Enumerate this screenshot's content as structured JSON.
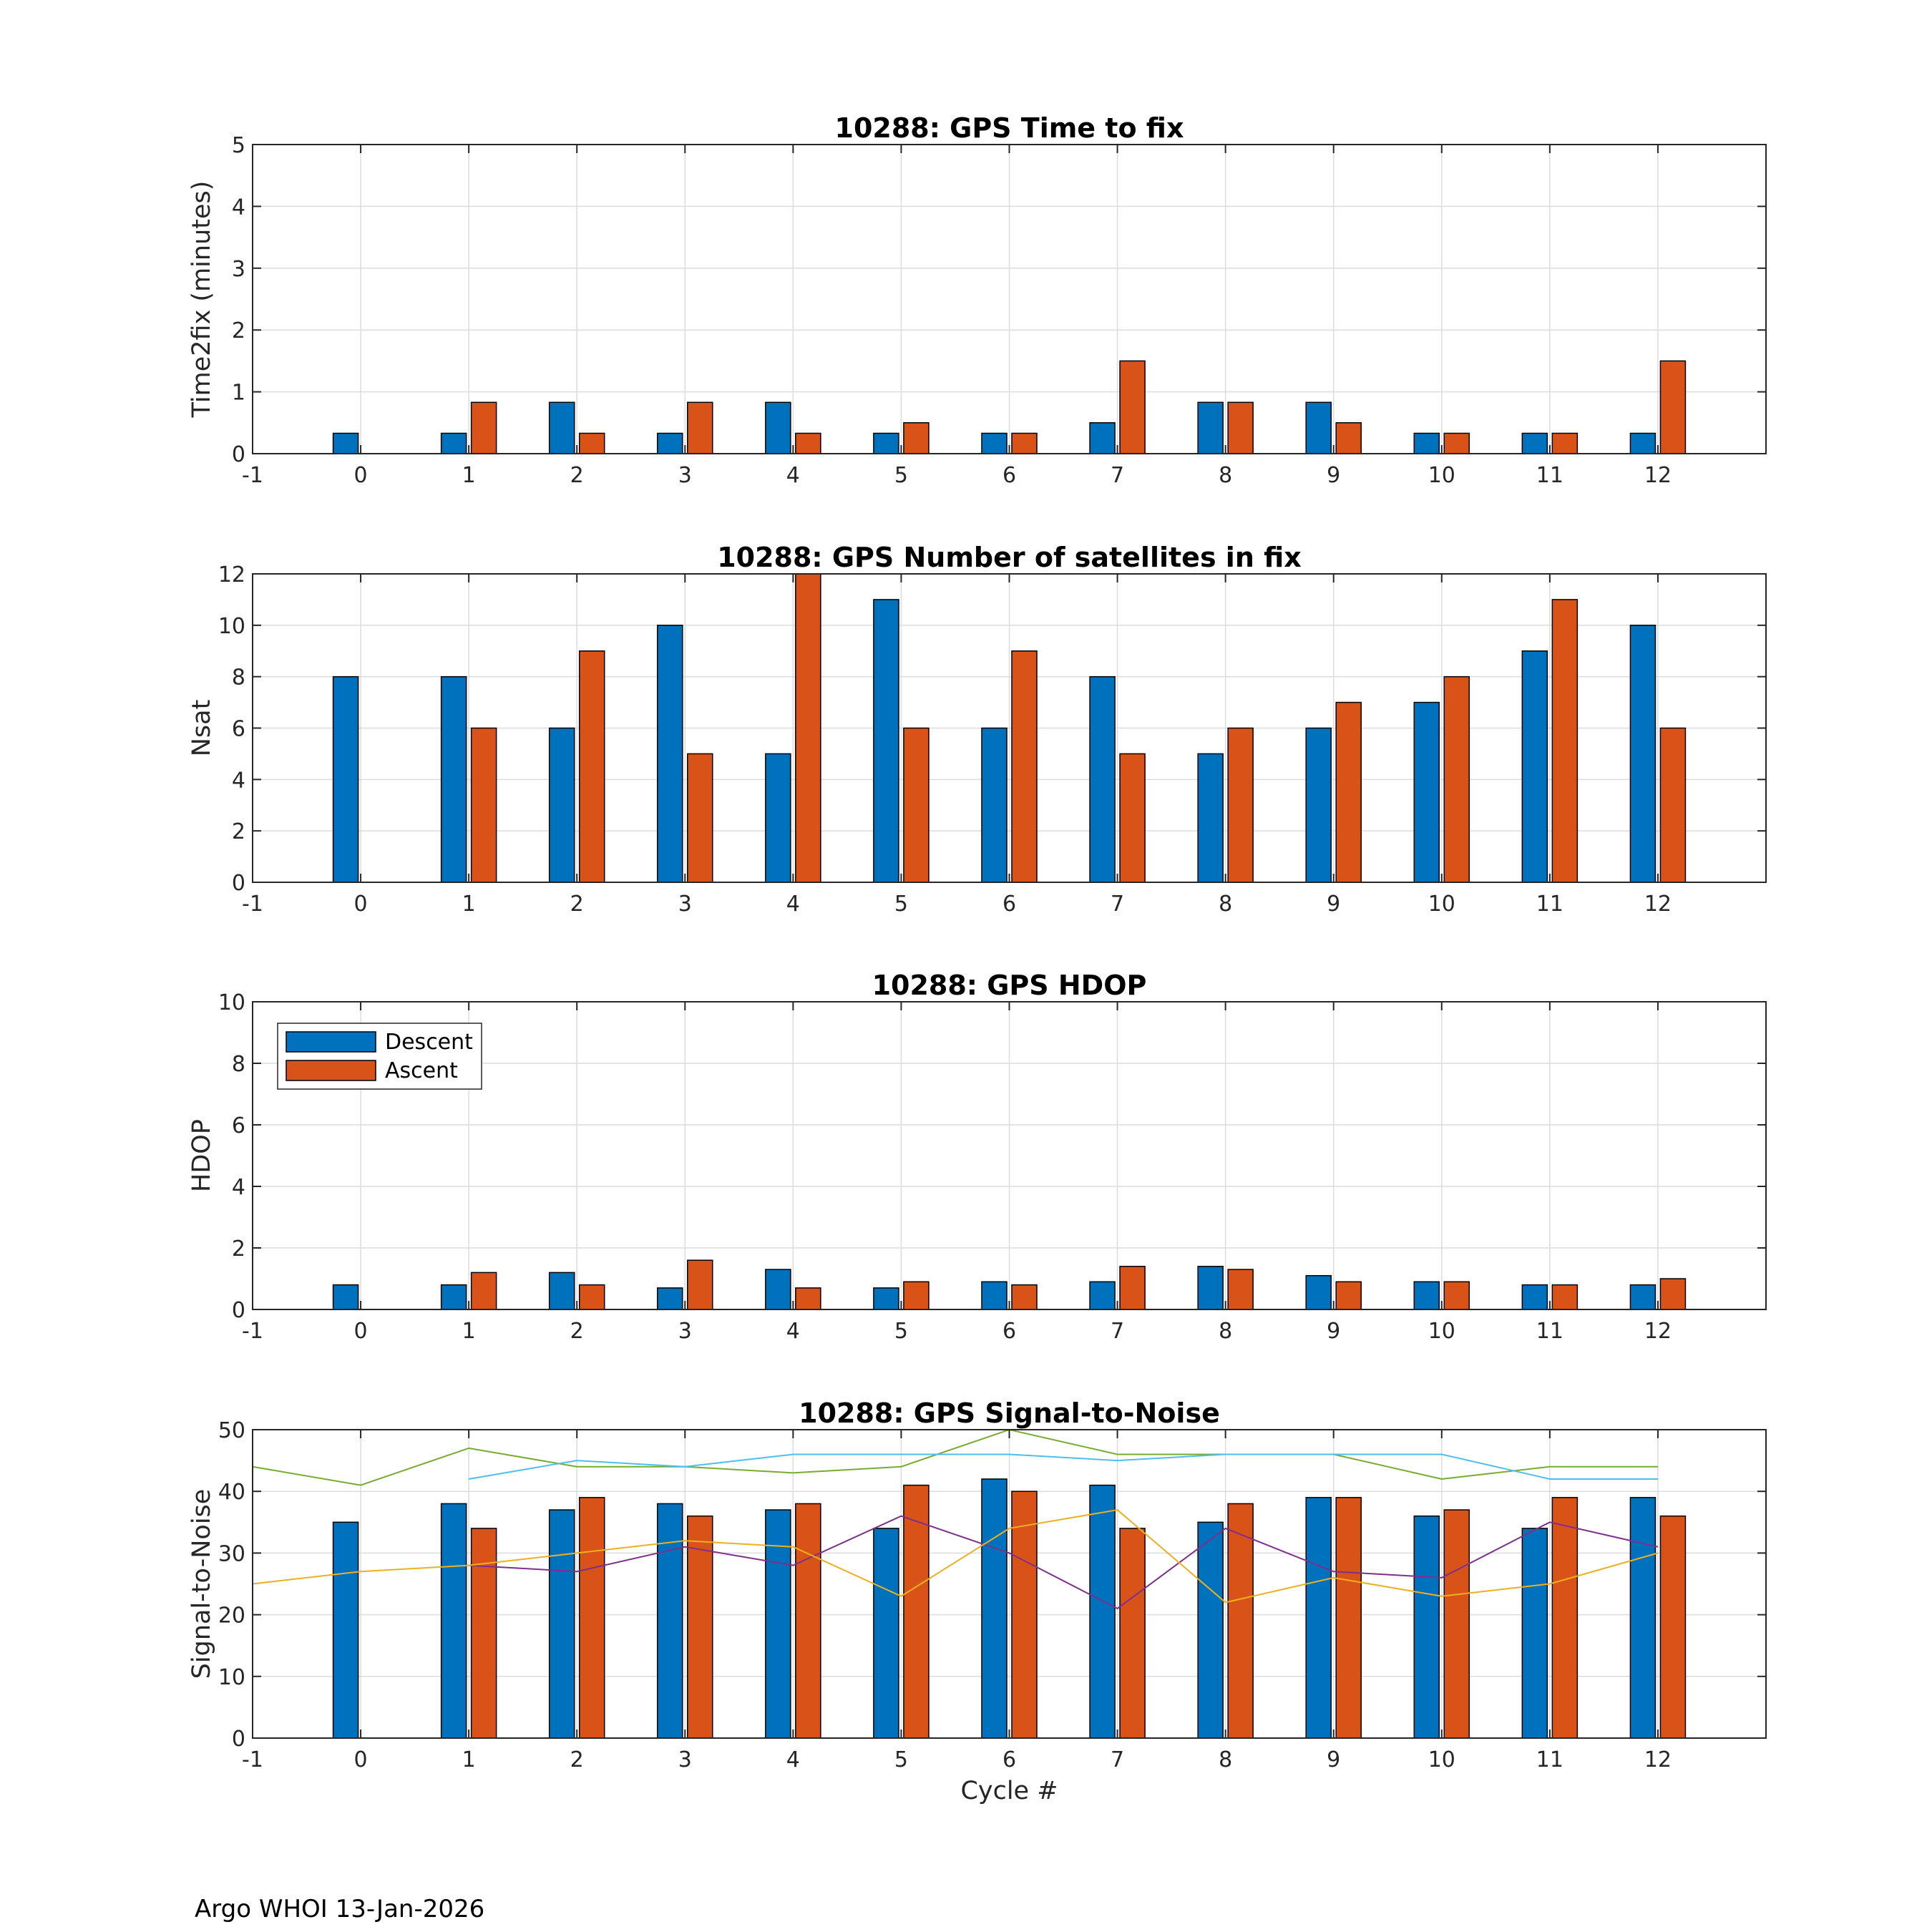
{
  "footer": "Argo WHOI 13-Jan-2026",
  "colors": {
    "descent": "#0072BD",
    "ascent": "#D95319",
    "snr_lines": [
      "#77AC30",
      "#4DBEEE",
      "#7E2F8E",
      "#EDB120"
    ],
    "grid": "#dcdcdc",
    "axis": "#262626"
  },
  "chart_data": [
    {
      "type": "bar",
      "title": "10288: GPS Time to fix",
      "xlabel": "",
      "ylabel": "Time2fix (minutes)",
      "xlim": [
        -1,
        13
      ],
      "ylim": [
        0,
        5
      ],
      "xticks": [
        -1,
        0,
        1,
        2,
        3,
        4,
        5,
        6,
        7,
        8,
        9,
        10,
        11,
        12
      ],
      "yticks": [
        0,
        1,
        2,
        3,
        4,
        5
      ],
      "grid": true,
      "categories": [
        0,
        1,
        2,
        3,
        4,
        5,
        6,
        7,
        8,
        9,
        10,
        11,
        12
      ],
      "series": [
        {
          "name": "Descent",
          "values": [
            0.33,
            0.33,
            0.83,
            0.33,
            0.83,
            0.33,
            0.33,
            0.5,
            0.83,
            0.83,
            0.33,
            0.33,
            0.33
          ]
        },
        {
          "name": "Ascent",
          "values": [
            null,
            0.83,
            0.33,
            0.83,
            0.33,
            0.5,
            0.33,
            1.5,
            0.83,
            0.5,
            0.33,
            0.33,
            1.5
          ]
        }
      ]
    },
    {
      "type": "bar",
      "title": "10288: GPS Number of satellites in fix",
      "xlabel": "",
      "ylabel": "Nsat",
      "xlim": [
        -1,
        13
      ],
      "ylim": [
        0,
        12
      ],
      "xticks": [
        -1,
        0,
        1,
        2,
        3,
        4,
        5,
        6,
        7,
        8,
        9,
        10,
        11,
        12
      ],
      "yticks": [
        0,
        2,
        4,
        6,
        8,
        10,
        12
      ],
      "grid": true,
      "categories": [
        0,
        1,
        2,
        3,
        4,
        5,
        6,
        7,
        8,
        9,
        10,
        11,
        12
      ],
      "series": [
        {
          "name": "Descent",
          "values": [
            8,
            8,
            6,
            10,
            5,
            11,
            6,
            8,
            5,
            6,
            7,
            9,
            10
          ]
        },
        {
          "name": "Ascent",
          "values": [
            null,
            6,
            9,
            5,
            12,
            6,
            9,
            5,
            6,
            7,
            8,
            11,
            6
          ]
        }
      ]
    },
    {
      "type": "bar",
      "title": "10288: GPS HDOP",
      "xlabel": "",
      "ylabel": "HDOP",
      "xlim": [
        -1,
        13
      ],
      "ylim": [
        0,
        10
      ],
      "xticks": [
        -1,
        0,
        1,
        2,
        3,
        4,
        5,
        6,
        7,
        8,
        9,
        10,
        11,
        12
      ],
      "yticks": [
        0,
        2,
        4,
        6,
        8,
        10
      ],
      "grid": true,
      "legend": {
        "location": "top-left",
        "entries": [
          "Descent",
          "Ascent"
        ]
      },
      "categories": [
        0,
        1,
        2,
        3,
        4,
        5,
        6,
        7,
        8,
        9,
        10,
        11,
        12
      ],
      "series": [
        {
          "name": "Descent",
          "values": [
            0.8,
            0.8,
            1.2,
            0.7,
            1.3,
            0.7,
            0.9,
            0.9,
            1.4,
            1.1,
            0.9,
            0.8,
            0.8
          ]
        },
        {
          "name": "Ascent",
          "values": [
            null,
            1.2,
            0.8,
            1.6,
            0.7,
            0.9,
            0.8,
            1.4,
            1.3,
            0.9,
            0.9,
            0.8,
            1.0
          ]
        }
      ]
    },
    {
      "type": "bar",
      "title": "10288: GPS Signal-to-Noise",
      "xlabel": "Cycle #",
      "ylabel": "Signal-to-Noise",
      "xlim": [
        -1,
        13
      ],
      "ylim": [
        0,
        50
      ],
      "xticks": [
        -1,
        0,
        1,
        2,
        3,
        4,
        5,
        6,
        7,
        8,
        9,
        10,
        11,
        12
      ],
      "yticks": [
        0,
        10,
        20,
        30,
        40,
        50
      ],
      "grid": true,
      "categories": [
        0,
        1,
        2,
        3,
        4,
        5,
        6,
        7,
        8,
        9,
        10,
        11,
        12
      ],
      "series": [
        {
          "name": "Descent",
          "values": [
            35,
            38,
            37,
            38,
            37,
            34,
            42,
            41,
            35,
            39,
            36,
            34,
            39
          ]
        },
        {
          "name": "Ascent",
          "values": [
            null,
            34,
            39,
            36,
            38,
            41,
            40,
            34,
            38,
            39,
            37,
            39,
            36
          ]
        }
      ],
      "lines": [
        {
          "x": [
            -1,
            0,
            1,
            2,
            3,
            4,
            5,
            6,
            7,
            8,
            9,
            10,
            11,
            12
          ],
          "y": [
            44,
            41,
            47,
            44,
            44,
            43,
            44,
            50,
            46,
            46,
            46,
            42,
            44,
            44
          ]
        },
        {
          "x": [
            1,
            2,
            3,
            4,
            5,
            6,
            7,
            8,
            9,
            10,
            11,
            12
          ],
          "y": [
            42,
            45,
            44,
            46,
            46,
            46,
            45,
            46,
            46,
            46,
            42,
            42
          ]
        },
        {
          "x": [
            1,
            2,
            3,
            4,
            5,
            6,
            7,
            8,
            9,
            10,
            11,
            12
          ],
          "y": [
            28,
            27,
            31,
            28,
            36,
            30,
            21,
            34,
            27,
            26,
            35,
            31
          ]
        },
        {
          "x": [
            -1,
            0,
            1,
            2,
            3,
            4,
            5,
            6,
            7,
            8,
            9,
            10,
            11,
            12
          ],
          "y": [
            25,
            27,
            28,
            30,
            32,
            31,
            23,
            34,
            37,
            22,
            26,
            23,
            25,
            30
          ]
        }
      ]
    }
  ]
}
